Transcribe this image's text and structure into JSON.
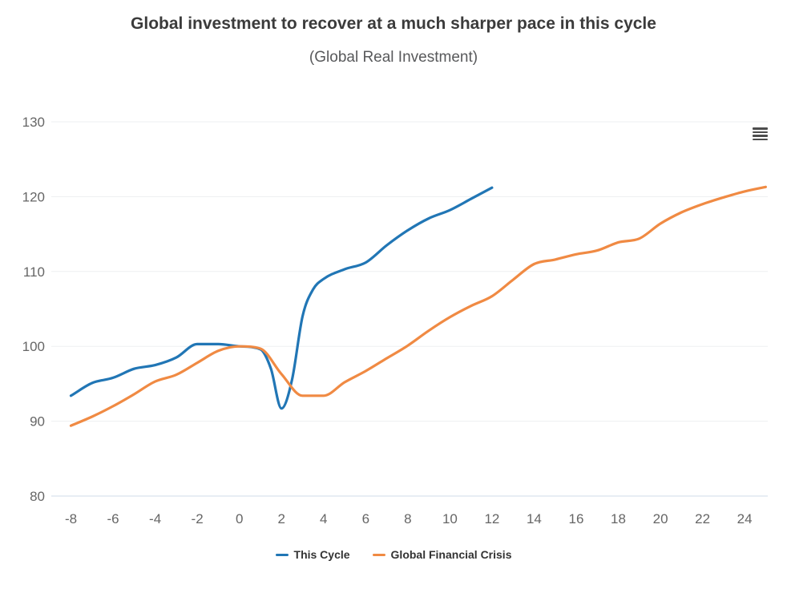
{
  "title": "Global investment to recover at a much sharper pace in this cycle",
  "subtitle": "(Global Real Investment)",
  "context_menu": {
    "icon": "hamburger-icon",
    "tooltip": "Chart context menu"
  },
  "colors": {
    "title": "#3b3b3b",
    "subtitle": "#58595b",
    "axis_label": "#666666",
    "gridline_faint": "#edeff1",
    "baseline_80": "#cfdbe8",
    "this_cycle": "#2176b5",
    "global_financial_crisis": "#f08a43"
  },
  "chart_data": {
    "type": "line",
    "title": "Global investment to recover at a much sharper pace in this cycle",
    "subtitle": "(Global Real Investment)",
    "xlabel": "",
    "ylabel": "",
    "xlim": [
      -8,
      25
    ],
    "ylim": [
      80,
      130
    ],
    "x_ticks": [
      -8,
      -6,
      -4,
      -2,
      0,
      2,
      4,
      6,
      8,
      10,
      12,
      14,
      16,
      18,
      20,
      22,
      24
    ],
    "y_ticks": [
      80,
      90,
      100,
      110,
      120,
      130
    ],
    "grid": "horizontal-faint",
    "legend_position": "bottom",
    "series": [
      {
        "name": "This Cycle",
        "color": "#2176b5",
        "x": [
          -8,
          -7,
          -6,
          -5,
          -4,
          -3,
          -2,
          -1,
          0,
          1,
          1.5,
          2,
          2.5,
          3,
          3.5,
          4,
          5,
          6,
          7,
          8,
          9,
          10,
          11,
          12
        ],
        "y": [
          93.4,
          95.1,
          95.8,
          97.0,
          97.5,
          98.5,
          100.3,
          100.3,
          100.0,
          99.6,
          97.0,
          91.7,
          95.5,
          104.0,
          107.6,
          109.0,
          110.3,
          111.2,
          113.5,
          115.5,
          117.1,
          118.2,
          119.7,
          121.2
        ]
      },
      {
        "name": "Global Financial Crisis",
        "color": "#f08a43",
        "x": [
          -8,
          -7,
          -6,
          -5,
          -4,
          -3,
          -2,
          -1,
          0,
          1,
          2,
          3,
          4,
          5,
          6,
          7,
          8,
          9,
          10,
          11,
          12,
          13,
          14,
          15,
          16,
          17,
          18,
          19,
          20,
          21,
          22,
          23,
          24,
          25
        ],
        "y": [
          89.4,
          90.6,
          92.0,
          93.6,
          95.3,
          96.2,
          97.8,
          99.4,
          100.0,
          99.7,
          96.3,
          93.4,
          93.4,
          95.2,
          96.7,
          98.4,
          100.1,
          102.1,
          103.9,
          105.4,
          106.7,
          108.9,
          111.0,
          111.6,
          112.3,
          112.8,
          113.9,
          114.4,
          116.4,
          117.9,
          119.0,
          119.9,
          120.7,
          121.3
        ]
      }
    ]
  }
}
